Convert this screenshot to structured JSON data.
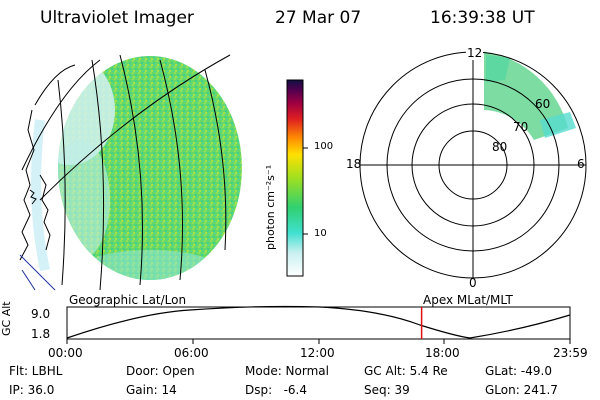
{
  "header": {
    "instrument": "Ultraviolet Imager",
    "date": "27 Mar 07",
    "time": "16:39:38 UT"
  },
  "colorbar": {
    "label": "photon cm⁻²s⁻¹",
    "ticks": [
      "100",
      "10"
    ]
  },
  "polar_plot": {
    "mlt_labels": {
      "top": "12",
      "left": "18",
      "right": "6",
      "bottom": "0"
    },
    "lat_labels": [
      "60",
      "70",
      "80"
    ]
  },
  "altitude_panel": {
    "left_label": "Geographic Lat/Lon",
    "right_label": "Apex MLat/MLT",
    "y_axis_label": "GC Alt",
    "y_ticks": [
      "9.0",
      "1.8"
    ],
    "x_ticks": [
      "00:00",
      "06:00",
      "12:00",
      "18:00",
      "23:59"
    ],
    "current_time_fraction": 0.705
  },
  "info": {
    "filter": "Flt: LBHL",
    "ip": "IP: 36.0",
    "door": "Door: Open",
    "gain": "Gain: 14",
    "mode": "Mode: Normal",
    "dsp": "Dsp:   -6.4",
    "gc_alt": "GC Alt: 5.4 Re",
    "seq": "Seq: 39",
    "glat": "GLat: -49.0",
    "glon": "GLon: 241.7"
  }
}
